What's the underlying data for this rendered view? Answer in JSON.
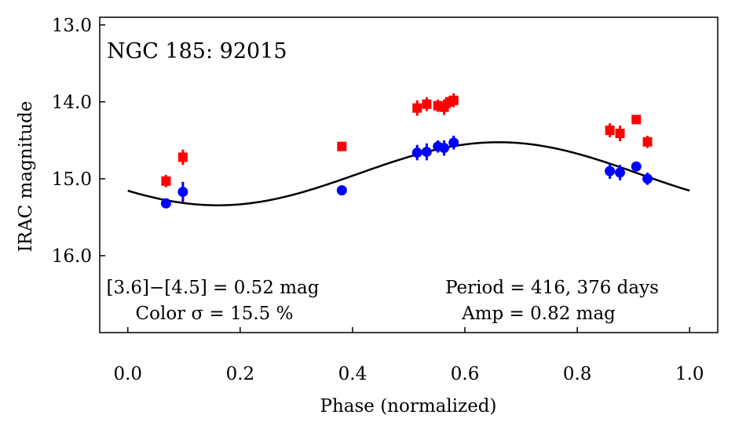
{
  "chart_data": {
    "type": "scatter",
    "title": "NGC 185: 92015",
    "xlabel": "Phase (normalized)",
    "ylabel": "IRAC magnitude",
    "xlim": [
      -0.05,
      1.05
    ],
    "ylim": [
      17.0,
      12.9
    ],
    "y_inverted": true,
    "xticks": [
      0.0,
      0.2,
      0.4,
      0.6,
      0.8,
      1.0
    ],
    "xtick_labels": [
      "0.0",
      "0.2",
      "0.4",
      "0.6",
      "0.8",
      "1.0"
    ],
    "yticks": [
      13.0,
      14.0,
      15.0,
      16.0
    ],
    "ytick_labels": [
      "13.0",
      "14.0",
      "15.0",
      "16.0"
    ],
    "grid": false,
    "annotations": {
      "color_line1": "[3.6]−[4.5] = 0.52 mag",
      "color_line2": "Color σ = 15.5 %",
      "period_line1": "Period = 416, 376 days",
      "period_line2": "Amp = 0.82 mag"
    },
    "series": [
      {
        "color": "#ff0000",
        "marker": "square",
        "points": [
          {
            "x": 0.068,
            "y": 15.03,
            "err": 0.08
          },
          {
            "x": 0.098,
            "y": 14.72,
            "err": 0.1
          },
          {
            "x": 0.381,
            "y": 14.58,
            "err": 0.06
          },
          {
            "x": 0.515,
            "y": 14.08,
            "err": 0.1
          },
          {
            "x": 0.532,
            "y": 14.03,
            "err": 0.09
          },
          {
            "x": 0.552,
            "y": 14.05,
            "err": 0.08
          },
          {
            "x": 0.563,
            "y": 14.07,
            "err": 0.1
          },
          {
            "x": 0.573,
            "y": 14.0,
            "err": 0.08
          },
          {
            "x": 0.58,
            "y": 13.98,
            "err": 0.09
          },
          {
            "x": 0.858,
            "y": 14.37,
            "err": 0.09
          },
          {
            "x": 0.876,
            "y": 14.41,
            "err": 0.1
          },
          {
            "x": 0.905,
            "y": 14.23,
            "err": 0.05
          },
          {
            "x": 0.925,
            "y": 14.52,
            "err": 0.08
          }
        ]
      },
      {
        "color": "#0000ff",
        "marker": "circle",
        "points": [
          {
            "x": 0.068,
            "y": 15.32,
            "err": 0.05
          },
          {
            "x": 0.098,
            "y": 15.17,
            "err": 0.13
          },
          {
            "x": 0.381,
            "y": 15.15,
            "err": 0.05
          },
          {
            "x": 0.515,
            "y": 14.66,
            "err": 0.1
          },
          {
            "x": 0.532,
            "y": 14.65,
            "err": 0.11
          },
          {
            "x": 0.552,
            "y": 14.58,
            "err": 0.08
          },
          {
            "x": 0.563,
            "y": 14.6,
            "err": 0.1
          },
          {
            "x": 0.58,
            "y": 14.53,
            "err": 0.09
          },
          {
            "x": 0.858,
            "y": 14.9,
            "err": 0.1
          },
          {
            "x": 0.876,
            "y": 14.92,
            "err": 0.1
          },
          {
            "x": 0.905,
            "y": 14.84,
            "err": 0.06
          },
          {
            "x": 0.925,
            "y": 15.0,
            "err": 0.08
          }
        ]
      }
    ],
    "fit_curve": {
      "color": "#000000",
      "x_range": [
        0.0,
        1.0
      ],
      "mean": 14.935,
      "amplitude": 0.41,
      "peak_phase": 0.66
    }
  }
}
